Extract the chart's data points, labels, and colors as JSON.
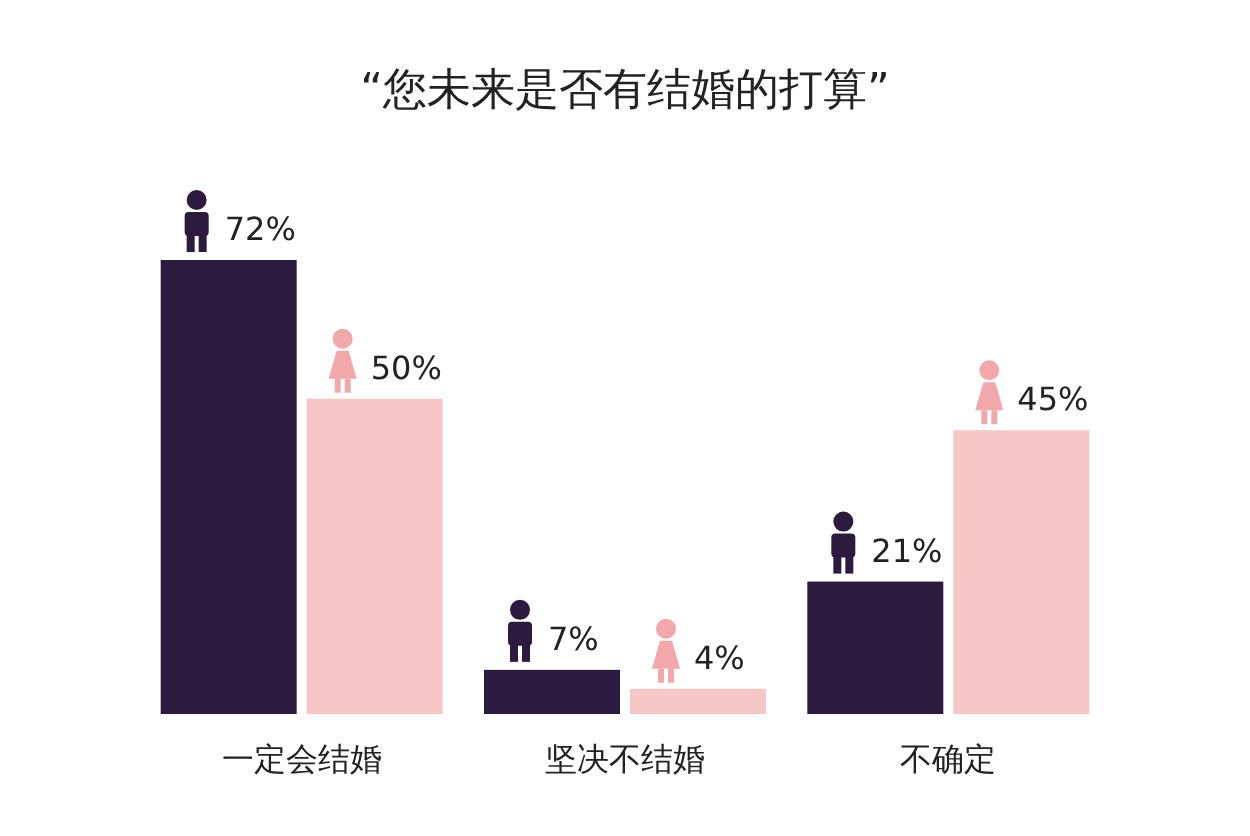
{
  "chart_data": {
    "type": "bar",
    "title": "“您未来是否有结婚的打算”",
    "categories": [
      "一定会结婚",
      "坚决不结婚",
      "不确定"
    ],
    "series": [
      {
        "color": "#2d1a3f",
        "values": [
          72,
          7,
          21
        ],
        "value_labels": [
          "72%",
          "7%",
          "21%"
        ]
      },
      {
        "color": "#f6c7c6",
        "values": [
          50,
          4,
          45
        ],
        "value_labels": [
          "50%",
          "4%",
          "45%"
        ]
      }
    ]
  }
}
